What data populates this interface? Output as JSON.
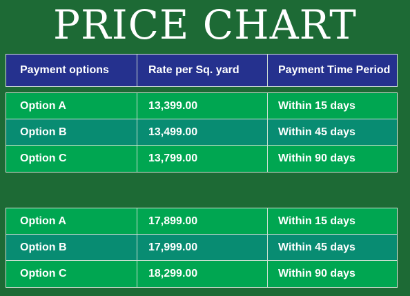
{
  "title": "PRICE CHART",
  "headers": [
    "Payment options",
    "Rate per Sq. yard",
    "Payment Time Period"
  ],
  "tables": [
    {
      "rows": [
        {
          "option": "Option A",
          "rate": "13,399.00",
          "period": "Within 15 days"
        },
        {
          "option": "Option B",
          "rate": "13,499.00",
          "period": "Within 45 days"
        },
        {
          "option": "Option C",
          "rate": "13,799.00",
          "period": "Within 90 days"
        }
      ]
    },
    {
      "rows": [
        {
          "option": "Option A",
          "rate": "17,899.00",
          "period": "Within 15 days"
        },
        {
          "option": "Option B",
          "rate": "17,999.00",
          "period": "Within 45 days"
        },
        {
          "option": "Option C",
          "rate": "18,299.00",
          "period": "Within 90 days"
        }
      ]
    }
  ],
  "colors": {
    "background": "#1d6a35",
    "header": "#25318e",
    "row_green": "#00a651",
    "row_teal": "#088c72"
  }
}
